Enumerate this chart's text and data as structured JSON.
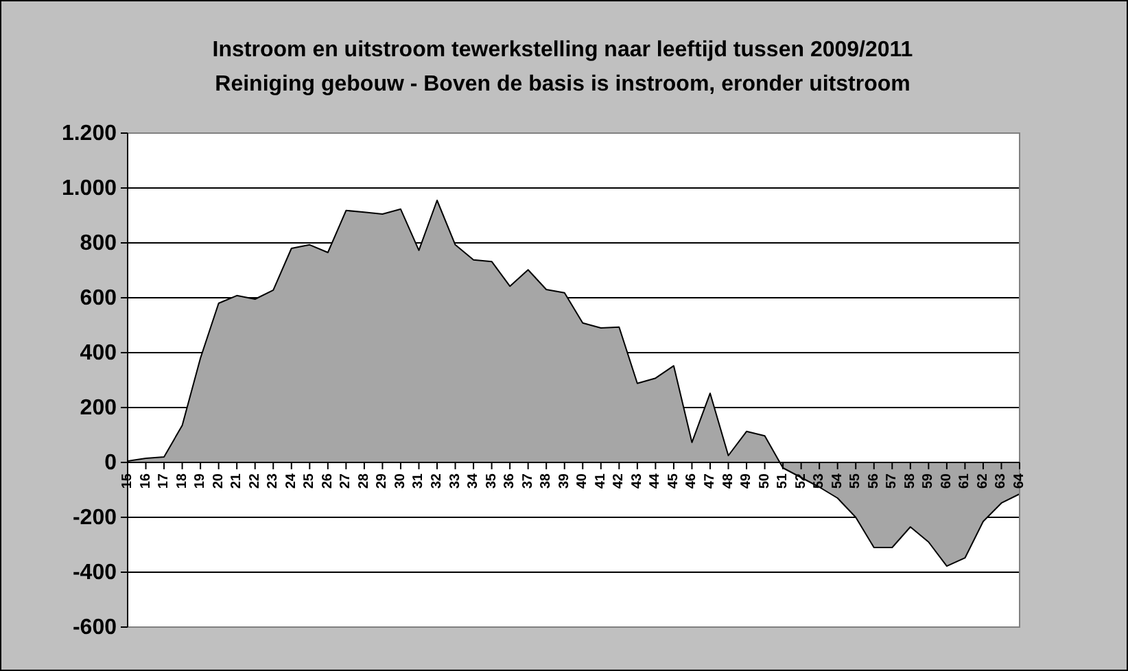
{
  "chart_data": {
    "type": "area",
    "title": "Instroom en uitstroom tewerkstelling naar leeftijd tussen 2009/2011",
    "subtitle": "Reiniging gebouw - Boven de basis is instroom, eronder uitstroom",
    "categories": [
      "15",
      "16",
      "17",
      "18",
      "19",
      "20",
      "21",
      "22",
      "23",
      "24",
      "25",
      "26",
      "27",
      "28",
      "29",
      "30",
      "31",
      "32",
      "33",
      "34",
      "35",
      "36",
      "37",
      "38",
      "39",
      "40",
      "41",
      "42",
      "43",
      "44",
      "45",
      "46",
      "47",
      "48",
      "49",
      "50",
      "51",
      "52",
      "53",
      "54",
      "55",
      "56",
      "57",
      "58",
      "59",
      "60",
      "61",
      "62",
      "63",
      "64"
    ],
    "series": [
      {
        "color": "#a6a6a6",
        "values": [
          5,
          15,
          20,
          135,
          380,
          580,
          608,
          595,
          628,
          780,
          793,
          765,
          918,
          912,
          905,
          923,
          773,
          955,
          793,
          738,
          732,
          642,
          702,
          630,
          618,
          508,
          490,
          493,
          288,
          307,
          352,
          73,
          252,
          25,
          113,
          97,
          -20,
          -55,
          -90,
          -130,
          -200,
          -310,
          -310,
          -235,
          -290,
          -378,
          -348,
          -215,
          -148,
          -115
        ]
      }
    ],
    "ylim": [
      -600,
      1200
    ],
    "yticks": [
      {
        "value": -600,
        "label": "-600"
      },
      {
        "value": -400,
        "label": "-400"
      },
      {
        "value": -200,
        "label": "-200"
      },
      0,
      200,
      400,
      600,
      800,
      {
        "value": 1000,
        "label": "1.000"
      },
      {
        "value": 1200,
        "label": "1.200"
      }
    ],
    "grid": "y"
  }
}
